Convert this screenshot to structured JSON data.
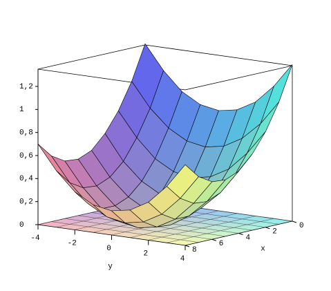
{
  "chart_data": {
    "type": "surface",
    "x_label": "x",
    "y_label": "y",
    "x": [
      0,
      1,
      2,
      3,
      4,
      5,
      6,
      7,
      8
    ],
    "y": [
      -4,
      -3,
      -2,
      -1,
      0,
      1,
      2,
      3,
      4
    ],
    "z": [
      [
        1.36,
        1.15,
        0.99,
        0.9,
        0.87,
        0.9,
        0.99,
        1.15,
        1.36
      ],
      [
        1.06,
        0.85,
        0.7,
        0.61,
        0.58,
        0.61,
        0.7,
        0.85,
        1.06
      ],
      [
        0.83,
        0.62,
        0.46,
        0.37,
        0.34,
        0.37,
        0.46,
        0.62,
        0.83
      ],
      [
        0.66,
        0.44,
        0.29,
        0.2,
        0.17,
        0.2,
        0.29,
        0.44,
        0.66
      ],
      [
        0.54,
        0.33,
        0.18,
        0.09,
        0.06,
        0.09,
        0.18,
        0.33,
        0.54
      ],
      [
        0.49,
        0.28,
        0.13,
        0.03,
        0.0,
        0.03,
        0.13,
        0.28,
        0.49
      ],
      [
        0.5,
        0.29,
        0.13,
        0.04,
        0.01,
        0.04,
        0.13,
        0.29,
        0.5
      ],
      [
        0.57,
        0.36,
        0.2,
        0.11,
        0.08,
        0.11,
        0.2,
        0.36,
        0.57
      ],
      [
        0.7,
        0.49,
        0.33,
        0.24,
        0.21,
        0.24,
        0.33,
        0.49,
        0.7
      ]
    ],
    "corner_colors": [
      "#5a5cf2",
      "#48e8e0",
      "#f0809a",
      "#f4f878"
    ],
    "xlim": [
      0,
      8
    ],
    "ylim": [
      -4,
      4
    ],
    "zlim": [
      0,
      1.35
    ],
    "xticks": [
      0,
      2,
      4,
      6,
      8
    ],
    "yticks": [
      -4,
      -2,
      0,
      2,
      4
    ],
    "zticks": [
      0,
      {
        "value": 0.2,
        "label": "0,2"
      },
      {
        "value": 0.4,
        "label": "0,4"
      },
      {
        "value": 0.6,
        "label": "0,6"
      },
      {
        "value": 0.8,
        "label": "0,8"
      },
      1,
      {
        "value": 1.2,
        "label": "1,2"
      }
    ]
  }
}
